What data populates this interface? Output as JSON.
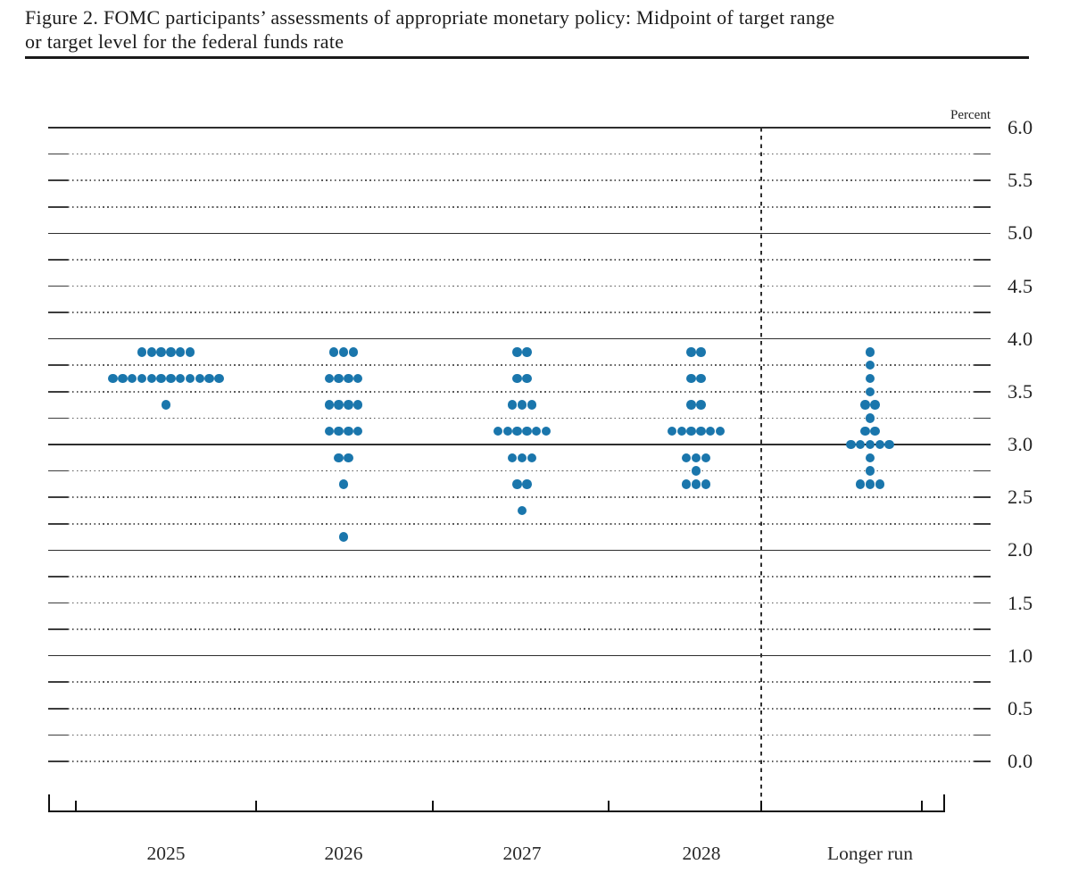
{
  "title": {
    "line1": "Figure 2. FOMC participants’ assessments of appropriate monetary policy: Midpoint of target range",
    "line2": "or target level for the federal funds rate"
  },
  "colors": {
    "dot": "#1a76ac",
    "solid_gridline": "#2e2e2e",
    "dotted_gridline": "#5c5c5c",
    "axis": "#101010",
    "text": "#1b1b1b"
  },
  "chart_data": {
    "type": "scatter",
    "subtype": "fomc-dot-plot",
    "title": "Figure 2. FOMC participants’ assessments of appropriate monetary policy: Midpoint of target range or target level for the federal funds rate",
    "ylabel": "Percent",
    "unit_label": "Percent",
    "ylim": [
      0.0,
      6.0
    ],
    "y_gridline_step": 0.25,
    "y_label_step": 0.5,
    "y_tick_labels": [
      "6.0",
      "5.5",
      "5.0",
      "4.5",
      "4.0",
      "3.5",
      "3.0",
      "2.5",
      "2.0",
      "1.5",
      "1.0",
      "0.5",
      "0.0"
    ],
    "grid": "solid lines at integer percents (1-6), dotted lines at other quarter-point levels; dashed vertical separator before Longer run",
    "legend_position": "none",
    "categories": [
      "2025",
      "2026",
      "2027",
      "2028",
      "Longer run"
    ],
    "series": [
      {
        "name": "2025",
        "dots": [
          {
            "rate": 3.875,
            "count": 6
          },
          {
            "rate": 3.625,
            "count": 12
          },
          {
            "rate": 3.375,
            "count": 1
          }
        ]
      },
      {
        "name": "2026",
        "dots": [
          {
            "rate": 3.875,
            "count": 3
          },
          {
            "rate": 3.625,
            "count": 4
          },
          {
            "rate": 3.375,
            "count": 4
          },
          {
            "rate": 3.125,
            "count": 4
          },
          {
            "rate": 2.875,
            "count": 2
          },
          {
            "rate": 2.625,
            "count": 1
          },
          {
            "rate": 2.125,
            "count": 1
          }
        ]
      },
      {
        "name": "2027",
        "dots": [
          {
            "rate": 3.875,
            "count": 2
          },
          {
            "rate": 3.625,
            "count": 2
          },
          {
            "rate": 3.375,
            "count": 3
          },
          {
            "rate": 3.125,
            "count": 6
          },
          {
            "rate": 2.875,
            "count": 3
          },
          {
            "rate": 2.625,
            "count": 2
          },
          {
            "rate": 2.375,
            "count": 1
          }
        ]
      },
      {
        "name": "2028",
        "dots": [
          {
            "rate": 3.875,
            "count": 2
          },
          {
            "rate": 3.625,
            "count": 2
          },
          {
            "rate": 3.375,
            "count": 2
          },
          {
            "rate": 3.125,
            "count": 6
          },
          {
            "rate": 2.875,
            "count": 3
          },
          {
            "rate": 2.75,
            "count": 1
          },
          {
            "rate": 2.625,
            "count": 3
          }
        ]
      },
      {
        "name": "Longer run",
        "dots": [
          {
            "rate": 3.875,
            "count": 1
          },
          {
            "rate": 3.75,
            "count": 1
          },
          {
            "rate": 3.625,
            "count": 1
          },
          {
            "rate": 3.5,
            "count": 1
          },
          {
            "rate": 3.375,
            "count": 2
          },
          {
            "rate": 3.25,
            "count": 1
          },
          {
            "rate": 3.125,
            "count": 2
          },
          {
            "rate": 3.0,
            "count": 5
          },
          {
            "rate": 2.875,
            "count": 1
          },
          {
            "rate": 2.75,
            "count": 1
          },
          {
            "rate": 2.625,
            "count": 3
          }
        ]
      }
    ]
  }
}
